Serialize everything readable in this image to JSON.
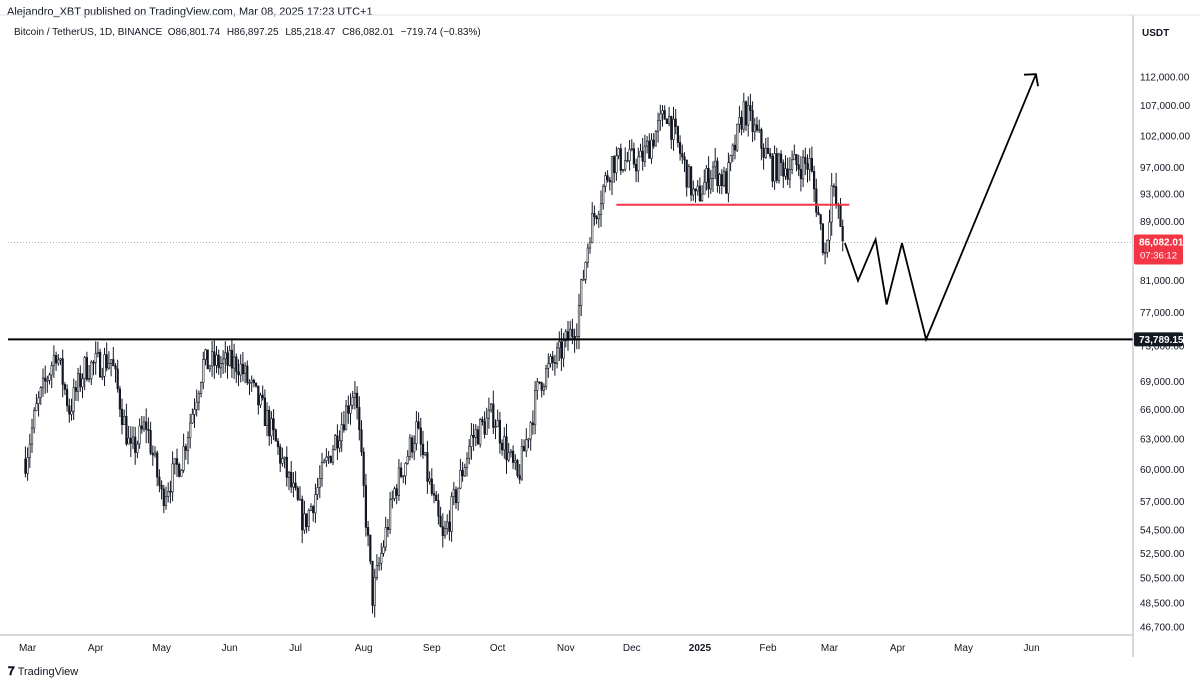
{
  "header": {
    "publisher": "Alejandro_XBT published on TradingView.com, Mar 08, 2025 17:23 UTC+1",
    "symbol": "Bitcoin / TetherUS, 1D, BINANCE",
    "open": "O86,801.74",
    "high": "H86,897.25",
    "low": "L85,218.47",
    "close": "C86,082.01",
    "change": "−719.74 (−0.83%)",
    "currency": "USDT"
  },
  "footer": {
    "brand": "TradingView",
    "logo_glyph": "𝟕"
  },
  "colors": {
    "candle": "#131722",
    "support_line": "#000000",
    "resistance_line": "#f23645",
    "price_label_bg": "#f23645",
    "grid": "#e0e3eb"
  },
  "price_labels": {
    "last_price": "86,082.01",
    "countdown": "07:36:12",
    "level": "73,789.15"
  },
  "chart_data": {
    "type": "candlestick",
    "title": "Bitcoin / TetherUS, 1D, BINANCE",
    "y_axis_ticks": [
      "112,000.00",
      "107,000.00",
      "102,000.00",
      "97,000.00",
      "93,000.00",
      "89,000.00",
      "81,000.00",
      "77,000.00",
      "73,000.00",
      "69,000.00",
      "66,000.00",
      "63,000.00",
      "60,000.00",
      "57,000.00",
      "54,500.00",
      "52,500.00",
      "50,500.00",
      "48,500.00",
      "46,700.00"
    ],
    "x_axis_ticks": [
      "Mar",
      "Apr",
      "May",
      "Jun",
      "Jul",
      "Aug",
      "Sep",
      "Oct",
      "Nov",
      "Dec",
      "2025",
      "Feb",
      "Mar",
      "Apr",
      "May",
      "Jun"
    ],
    "y_scale": "log",
    "ylim": [
      46000,
      116000
    ],
    "closes_approx": [
      [
        "2024-02-29",
        61000
      ],
      [
        "2024-03-05",
        66000
      ],
      [
        "2024-03-14",
        72500
      ],
      [
        "2024-03-20",
        66000
      ],
      [
        "2024-03-27",
        70500
      ],
      [
        "2024-04-08",
        71500
      ],
      [
        "2024-04-17",
        61500
      ],
      [
        "2024-04-24",
        64500
      ],
      [
        "2024-05-01",
        57500
      ],
      [
        "2024-05-10",
        61000
      ],
      [
        "2024-05-20",
        71000
      ],
      [
        "2024-06-05",
        71000
      ],
      [
        "2024-06-18",
        65000
      ],
      [
        "2024-07-05",
        55000
      ],
      [
        "2024-07-14",
        60000
      ],
      [
        "2024-07-28",
        68500
      ],
      [
        "2024-08-05",
        49000
      ],
      [
        "2024-08-15",
        58000
      ],
      [
        "2024-08-25",
        64000
      ],
      [
        "2024-09-06",
        53500
      ],
      [
        "2024-09-19",
        63000
      ],
      [
        "2024-09-29",
        65500
      ],
      [
        "2024-10-10",
        59000
      ],
      [
        "2024-10-20",
        69000
      ],
      [
        "2024-10-29",
        72000
      ],
      [
        "2024-11-06",
        75800
      ],
      [
        "2024-11-12",
        88000
      ],
      [
        "2024-11-22",
        98000
      ],
      [
        "2024-12-05",
        98000
      ],
      [
        "2024-12-17",
        106000
      ],
      [
        "2024-12-30",
        92000
      ],
      [
        "2025-01-07",
        97000
      ],
      [
        "2025-01-13",
        94500
      ],
      [
        "2025-01-21",
        106500
      ],
      [
        "2025-02-03",
        97000
      ],
      [
        "2025-02-20",
        97500
      ],
      [
        "2025-02-27",
        84500
      ],
      [
        "2025-03-02",
        94000
      ],
      [
        "2025-03-08",
        86082
      ]
    ],
    "horizontal_levels": [
      {
        "price": 73789.15,
        "label": "73,789.15"
      },
      {
        "price": 91400
      }
    ],
    "projection_path": [
      [
        "2025-03-08",
        86000
      ],
      [
        "2025-03-14",
        81000
      ],
      [
        "2025-03-22",
        86500
      ],
      [
        "2025-03-27",
        78000
      ],
      [
        "2025-04-03",
        86000
      ],
      [
        "2025-04-14",
        73789
      ],
      [
        "2025-06-03",
        112500
      ]
    ],
    "last_price": 86082.01
  }
}
